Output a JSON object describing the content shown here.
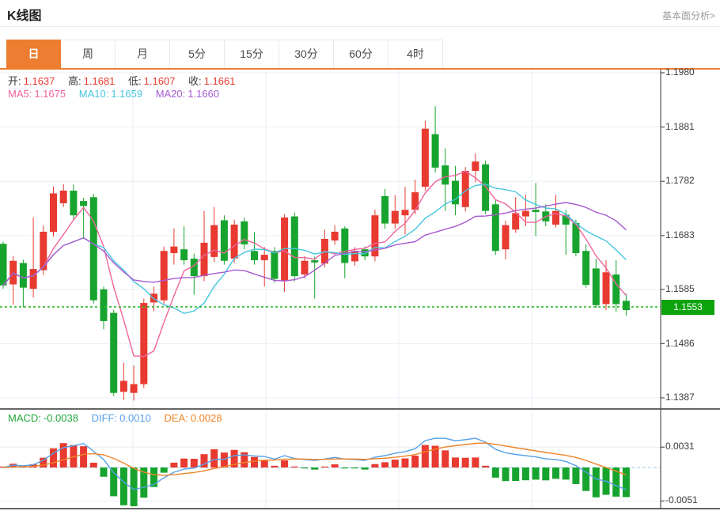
{
  "header": {
    "title": "K线图",
    "link": "基本面分析>"
  },
  "tabs": {
    "items": [
      {
        "label": "日",
        "active": true
      },
      {
        "label": "周"
      },
      {
        "label": "月"
      },
      {
        "label": "5分"
      },
      {
        "label": "15分"
      },
      {
        "label": "30分"
      },
      {
        "label": "60分"
      },
      {
        "label": "4时"
      }
    ]
  },
  "main_chart": {
    "ohlc_legend": {
      "open_label": "开:",
      "open": "1.1637",
      "high_label": "高:",
      "high": "1.1681",
      "low_label": "低:",
      "low": "1.1607",
      "close_label": "收:",
      "close": "1.1661"
    },
    "ma_legend": {
      "ma5_label": "MA5:",
      "ma5": "1.1675",
      "ma10_label": "MA10:",
      "ma10": "1.1659",
      "ma20_label": "MA20:",
      "ma20": "1.1660"
    },
    "y_axis": [
      "1.1980",
      "1.1881",
      "1.1782",
      "1.1683",
      "1.1585",
      "1.1486",
      "1.1387"
    ],
    "current_price": "1.1553"
  },
  "macd_panel": {
    "macd_label": "MACD:",
    "macd": "-0.0038",
    "diff_label": "DIFF:",
    "diff": "0.0010",
    "dea_label": "DEA:",
    "dea": "0.0028",
    "y_axis": [
      "0.0031",
      "-0.0051"
    ]
  },
  "colors": {
    "up": "#e83a30",
    "down": "#17a42e",
    "ma5": "#f0639c",
    "ma10": "#45c6de",
    "ma20": "#a85ad0",
    "diff": "#55a0e8",
    "dea": "#f08426",
    "tab_accent": "#ed7d31",
    "price_badge": "#0ca30c",
    "grid": "#e9eef4",
    "axis": "#555555",
    "panel_border": "#333333",
    "current_line": "#2db92d",
    "zero_dash": "#badbef",
    "value_red": "#e8392f"
  },
  "chart_data": {
    "type": "candlestick_with_macd",
    "convention": "red = up (close>open), green = down; Chinese style",
    "price_axis": {
      "labels": [
        1.198,
        1.1881,
        1.1782,
        1.1683,
        1.1585,
        1.1486,
        1.1387
      ],
      "current": 1.1553
    },
    "macd_axis": {
      "labels": [
        0.0031,
        -0.0051
      ]
    },
    "indicators": {
      "ma_periods": [
        5,
        10,
        20
      ],
      "macd": {
        "fast": 12,
        "slow": 26,
        "signal": 9
      }
    },
    "candles_ohlc": [
      [
        1.1668,
        1.1672,
        1.1586,
        1.1592
      ],
      [
        1.1594,
        1.1646,
        1.1557,
        1.1637
      ],
      [
        1.1633,
        1.1639,
        1.1552,
        1.1588
      ],
      [
        1.1586,
        1.1716,
        1.157,
        1.1622
      ],
      [
        1.162,
        1.1701,
        1.1611,
        1.169
      ],
      [
        1.169,
        1.1772,
        1.1681,
        1.176
      ],
      [
        1.1742,
        1.1777,
        1.1735,
        1.1765
      ],
      [
        1.1765,
        1.1776,
        1.1712,
        1.172
      ],
      [
        1.1746,
        1.1752,
        1.1677,
        1.1737
      ],
      [
        1.1753,
        1.1759,
        1.1559,
        1.1565
      ],
      [
        1.1585,
        1.159,
        1.1512,
        1.1527
      ],
      [
        1.1542,
        1.1548,
        1.139,
        1.1396
      ],
      [
        1.1398,
        1.1451,
        1.1383,
        1.1418
      ],
      [
        1.1396,
        1.1446,
        1.1382,
        1.1412
      ],
      [
        1.1412,
        1.1568,
        1.1405,
        1.156
      ],
      [
        1.1561,
        1.159,
        1.1545,
        1.1577
      ],
      [
        1.1565,
        1.1663,
        1.1557,
        1.1655
      ],
      [
        1.1651,
        1.1696,
        1.163,
        1.1663
      ],
      [
        1.1658,
        1.17,
        1.163,
        1.1638
      ],
      [
        1.1641,
        1.165,
        1.1575,
        1.1609
      ],
      [
        1.1609,
        1.1728,
        1.16,
        1.167
      ],
      [
        1.1644,
        1.1735,
        1.1635,
        1.1702
      ],
      [
        1.1711,
        1.172,
        1.163,
        1.1637
      ],
      [
        1.1641,
        1.1712,
        1.1633,
        1.1703
      ],
      [
        1.1709,
        1.1716,
        1.1658,
        1.1667
      ],
      [
        1.1655,
        1.1689,
        1.163,
        1.1638
      ],
      [
        1.1638,
        1.1662,
        1.159,
        1.1648
      ],
      [
        1.1655,
        1.1662,
        1.1597,
        1.1604
      ],
      [
        1.1601,
        1.1722,
        1.158,
        1.1716
      ],
      [
        1.1718,
        1.1725,
        1.16,
        1.1609
      ],
      [
        1.1612,
        1.1645,
        1.1605,
        1.1637
      ],
      [
        1.1638,
        1.1645,
        1.1568,
        1.1634
      ],
      [
        1.1632,
        1.1694,
        1.1625,
        1.1677
      ],
      [
        1.1674,
        1.1702,
        1.1666,
        1.169
      ],
      [
        1.1696,
        1.17,
        1.1605,
        1.1633
      ],
      [
        1.1636,
        1.1662,
        1.1628,
        1.1655
      ],
      [
        1.1658,
        1.1663,
        1.1638,
        1.1645
      ],
      [
        1.1645,
        1.173,
        1.1636,
        1.172
      ],
      [
        1.1755,
        1.1768,
        1.1695,
        1.1705
      ],
      [
        1.1705,
        1.1757,
        1.1695,
        1.1728
      ],
      [
        1.172,
        1.1772,
        1.1685,
        1.173
      ],
      [
        1.173,
        1.1785,
        1.1722,
        1.1762
      ],
      [
        1.1772,
        1.1892,
        1.1765,
        1.1878
      ],
      [
        1.1868,
        1.1919,
        1.1798,
        1.1807
      ],
      [
        1.1811,
        1.1842,
        1.1728,
        1.1776
      ],
      [
        1.1783,
        1.181,
        1.172,
        1.174
      ],
      [
        1.1735,
        1.1808,
        1.1727,
        1.1801
      ],
      [
        1.1801,
        1.1833,
        1.178,
        1.1818
      ],
      [
        1.1813,
        1.182,
        1.1722,
        1.1728
      ],
      [
        1.174,
        1.1748,
        1.1648,
        1.1655
      ],
      [
        1.1658,
        1.171,
        1.164,
        1.1702
      ],
      [
        1.1694,
        1.1753,
        1.1688,
        1.1724
      ],
      [
        1.1718,
        1.1758,
        1.17,
        1.1728
      ],
      [
        1.173,
        1.1779,
        1.1682,
        1.1726
      ],
      [
        1.1727,
        1.174,
        1.17,
        1.1709
      ],
      [
        1.1703,
        1.1757,
        1.1698,
        1.1728
      ],
      [
        1.1721,
        1.173,
        1.1648,
        1.1703
      ],
      [
        1.1706,
        1.1712,
        1.1645,
        1.1651
      ],
      [
        1.1655,
        1.1667,
        1.1588,
        1.1593
      ],
      [
        1.1623,
        1.1641,
        1.1551,
        1.1556
      ],
      [
        1.1558,
        1.1638,
        1.1547,
        1.1616
      ],
      [
        1.1612,
        1.1638,
        1.1543,
        1.1558
      ],
      [
        1.1564,
        1.1577,
        1.1537,
        1.1547
      ]
    ]
  }
}
